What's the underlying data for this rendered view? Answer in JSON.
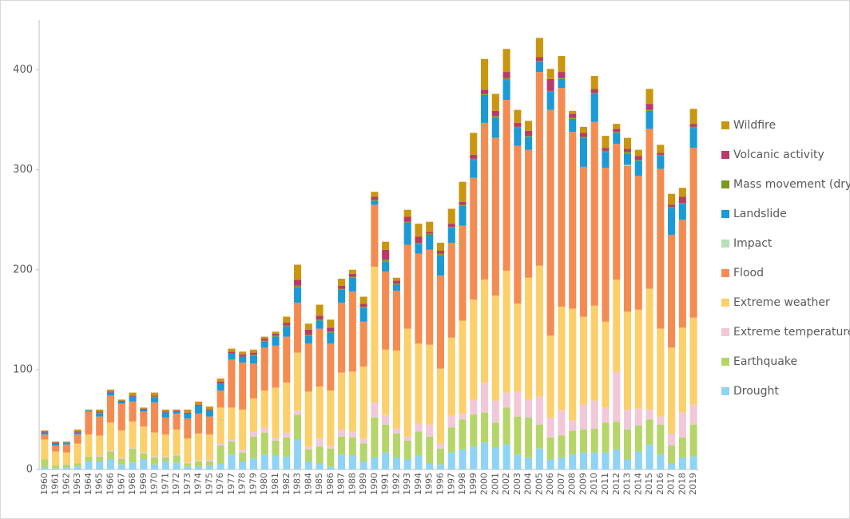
{
  "chart_data": {
    "type": "stacked-bar",
    "categories": [
      "1960",
      "1961",
      "1962",
      "1963",
      "1964",
      "1965",
      "1966",
      "1967",
      "1968",
      "1969",
      "1970",
      "1971",
      "1972",
      "1973",
      "1974",
      "1975",
      "1976",
      "1977",
      "1978",
      "1979",
      "1980",
      "1981",
      "1982",
      "1983",
      "1984",
      "1985",
      "1986",
      "1987",
      "1988",
      "1989",
      "1990",
      "1991",
      "1992",
      "1993",
      "1994",
      "1995",
      "1996",
      "1997",
      "1998",
      "1999",
      "2000",
      "2001",
      "2002",
      "2003",
      "2004",
      "2005",
      "2006",
      "2007",
      "2008",
      "2009",
      "2010",
      "2011",
      "2012",
      "2013",
      "2014",
      "2015",
      "2016",
      "2017",
      "2018",
      "2019"
    ],
    "series": [
      {
        "name": "Drought",
        "color": "#8fd3f5",
        "values": [
          2,
          1,
          2,
          3,
          8,
          8,
          10,
          5,
          7,
          10,
          5,
          8,
          7,
          3,
          3,
          4,
          6,
          15,
          8,
          11,
          15,
          14,
          13,
          30,
          8,
          6,
          3,
          15,
          14,
          8,
          12,
          17,
          12,
          10,
          14,
          6,
          5,
          17,
          20,
          23,
          27,
          22,
          25,
          15,
          12,
          21,
          10,
          12,
          15,
          17,
          17,
          17,
          20,
          10,
          18,
          25,
          15,
          6,
          12,
          13
        ]
      },
      {
        "name": "Earthquake",
        "color": "#b5d56a",
        "values": [
          8,
          3,
          3,
          3,
          5,
          5,
          8,
          6,
          14,
          6,
          7,
          4,
          7,
          3,
          5,
          4,
          18,
          13,
          9,
          22,
          22,
          15,
          19,
          25,
          12,
          17,
          18,
          18,
          18,
          18,
          40,
          28,
          24,
          19,
          24,
          27,
          16,
          25,
          30,
          32,
          30,
          25,
          37,
          38,
          40,
          24,
          22,
          22,
          24,
          23,
          24,
          30,
          28,
          30,
          26,
          25,
          30,
          18,
          20,
          32
        ]
      },
      {
        "name": "Extreme temperature",
        "color": "#f2c8d8",
        "values": [
          0,
          0,
          0,
          0,
          0,
          1,
          1,
          1,
          1,
          1,
          1,
          1,
          1,
          1,
          1,
          2,
          2,
          2,
          3,
          5,
          5,
          3,
          5,
          4,
          3,
          8,
          3,
          7,
          6,
          5,
          15,
          10,
          5,
          4,
          8,
          12,
          5,
          12,
          6,
          15,
          30,
          22,
          15,
          25,
          18,
          28,
          20,
          25,
          10,
          25,
          28,
          15,
          50,
          20,
          17,
          10,
          8,
          12,
          25,
          20
        ]
      },
      {
        "name": "Extreme weather",
        "color": "#fbd06a",
        "values": [
          20,
          14,
          12,
          20,
          22,
          20,
          28,
          27,
          26,
          26,
          24,
          22,
          25,
          24,
          27,
          25,
          36,
          32,
          40,
          33,
          37,
          50,
          50,
          58,
          55,
          52,
          55,
          57,
          60,
          72,
          136,
          65,
          78,
          108,
          80,
          80,
          75,
          78,
          93,
          100,
          103,
          105,
          122,
          88,
          122,
          131,
          82,
          104,
          112,
          88,
          95,
          86,
          92,
          98,
          99,
          121,
          88,
          86,
          85,
          87
        ]
      },
      {
        "name": "Flood",
        "color": "#f48c52",
        "values": [
          5,
          6,
          8,
          9,
          23,
          19,
          27,
          27,
          20,
          15,
          30,
          17,
          16,
          20,
          20,
          18,
          17,
          48,
          47,
          35,
          43,
          42,
          46,
          50,
          48,
          58,
          47,
          70,
          80,
          45,
          62,
          78,
          60,
          84,
          90,
          95,
          93,
          95,
          95,
          122,
          157,
          158,
          171,
          158,
          128,
          194,
          226,
          219,
          177,
          150,
          184,
          154,
          136,
          146,
          134,
          160,
          160,
          113,
          108,
          170
        ]
      },
      {
        "name": "Impact",
        "color": "#b8dfb8",
        "values": [
          0,
          0,
          0,
          0,
          0,
          0,
          0,
          0,
          0,
          0,
          0,
          0,
          0,
          0,
          0,
          0,
          0,
          0,
          0,
          0,
          0,
          0,
          0,
          0,
          0,
          0,
          0,
          0,
          0,
          0,
          0,
          0,
          0,
          0,
          0,
          0,
          0,
          0,
          0,
          0,
          0,
          0,
          0,
          0,
          0,
          0,
          0,
          0,
          0,
          0,
          0,
          0,
          0,
          1,
          0,
          0,
          0,
          0,
          0,
          0
        ]
      },
      {
        "name": "Landslide",
        "color": "#1b9ad6",
        "values": [
          2,
          2,
          2,
          2,
          1,
          3,
          3,
          2,
          5,
          2,
          5,
          5,
          2,
          5,
          8,
          6,
          7,
          6,
          6,
          8,
          6,
          9,
          10,
          15,
          8,
          8,
          11,
          13,
          14,
          14,
          4,
          10,
          6,
          22,
          10,
          15,
          20,
          15,
          20,
          18,
          28,
          20,
          20,
          18,
          13,
          10,
          18,
          9,
          13,
          29,
          28,
          16,
          11,
          11,
          15,
          18,
          13,
          27,
          16,
          20
        ]
      },
      {
        "name": "Mass movement (dry)",
        "color": "#7a9a1e",
        "values": [
          0,
          0,
          0,
          0,
          0,
          1,
          0,
          0,
          0,
          0,
          1,
          0,
          0,
          0,
          0,
          0,
          0,
          0,
          0,
          1,
          1,
          1,
          1,
          2,
          1,
          1,
          1,
          1,
          1,
          1,
          1,
          2,
          1,
          1,
          1,
          1,
          2,
          1,
          1,
          1,
          1,
          2,
          2,
          1,
          1,
          1,
          1,
          1,
          1,
          1,
          1,
          1,
          1,
          2,
          1,
          1,
          1,
          1,
          1,
          1
        ]
      },
      {
        "name": "Volcanic activity",
        "color": "#b83a6a",
        "values": [
          1,
          1,
          0,
          1,
          0,
          1,
          1,
          1,
          1,
          1,
          1,
          1,
          1,
          1,
          1,
          1,
          2,
          2,
          2,
          2,
          2,
          2,
          3,
          6,
          5,
          4,
          4,
          3,
          3,
          3,
          3,
          10,
          3,
          5,
          6,
          2,
          3,
          3,
          3,
          4,
          4,
          5,
          6,
          4,
          5,
          4,
          12,
          6,
          4,
          4,
          4,
          3,
          3,
          3,
          4,
          6,
          2,
          2,
          6,
          3
        ]
      },
      {
        "name": "Wildfire",
        "color": "#c9960f",
        "values": [
          1,
          1,
          1,
          2,
          1,
          2,
          2,
          1,
          3,
          1,
          3,
          2,
          1,
          3,
          3,
          3,
          3,
          3,
          3,
          3,
          2,
          2,
          6,
          15,
          6,
          11,
          8,
          7,
          4,
          7,
          5,
          8,
          3,
          7,
          13,
          10,
          8,
          15,
          20,
          22,
          31,
          17,
          23,
          13,
          10,
          19,
          10,
          16,
          3,
          6,
          13,
          12,
          5,
          11,
          6,
          15,
          8,
          11,
          9,
          15
        ]
      }
    ],
    "ylim": [
      0,
      450
    ],
    "yticks": [
      0,
      100,
      200,
      300,
      400
    ]
  }
}
